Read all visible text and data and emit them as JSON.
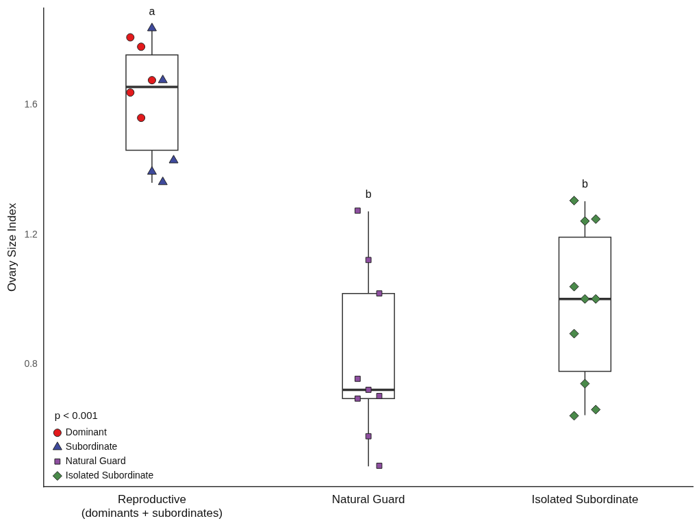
{
  "chart_data": {
    "type": "box",
    "ylabel": "Ovary Size Index",
    "categories": [
      "Reproductive\n(dominants + subordinates)",
      "Natural Guard",
      "Isolated Subordinate"
    ],
    "boxes": [
      {
        "low": 1.36,
        "q1": 1.46,
        "median": 1.655,
        "q3": 1.754,
        "high": 1.836
      },
      {
        "low": 0.486,
        "q1": 0.695,
        "median": 0.722,
        "q3": 1.019,
        "high": 1.272
      },
      {
        "low": 0.644,
        "q1": 0.779,
        "median": 1.002,
        "q3": 1.192,
        "high": 1.303
      }
    ],
    "color": "#ffffff",
    "series": [
      {
        "type": "scatter",
        "name": "Dominant",
        "color": "#e31a1c",
        "marker": "circle",
        "x": [
          "Reproductive\n(dominants + subordinates)",
          "Reproductive\n(dominants + subordinates)",
          "Reproductive\n(dominants + subordinates)",
          "Reproductive\n(dominants + subordinates)",
          "Reproductive\n(dominants + subordinates)"
        ],
        "values": [
          1.808,
          1.779,
          1.676,
          1.638,
          1.56
        ]
      },
      {
        "type": "scatter",
        "name": "Subordinate",
        "color": "#3f4a9c",
        "marker": "triangle",
        "x": [
          "Reproductive\n(dominants + subordinates)",
          "Reproductive\n(dominants + subordinates)",
          "Reproductive\n(dominants + subordinates)",
          "Reproductive\n(dominants + subordinates)",
          "Reproductive\n(dominants + subordinates)"
        ],
        "values": [
          1.836,
          1.676,
          1.429,
          1.394,
          1.362
        ]
      },
      {
        "type": "scatter",
        "name": "Natural Guard",
        "color": "#8e4fa0",
        "marker": "square",
        "x": [
          "Natural Guard",
          "Natural Guard",
          "Natural Guard",
          "Natural Guard",
          "Natural Guard",
          "Natural Guard",
          "Natural Guard",
          "Natural Guard",
          "Natural Guard"
        ],
        "values": [
          1.274,
          1.122,
          1.019,
          0.756,
          0.722,
          0.703,
          0.695,
          0.579,
          0.488
        ]
      },
      {
        "type": "scatter",
        "name": "Isolated Subordinate",
        "color": "#4a8a4a",
        "marker": "diamond",
        "x": [
          "Isolated Subordinate",
          "Isolated Subordinate",
          "Isolated Subordinate",
          "Isolated Subordinate",
          "Isolated Subordinate",
          "Isolated Subordinate",
          "Isolated Subordinate",
          "Isolated Subordinate",
          "Isolated Subordinate",
          "Isolated Subordinate"
        ],
        "values": [
          1.305,
          1.242,
          1.248,
          1.04,
          1.002,
          1.002,
          0.895,
          0.741,
          0.661,
          0.642
        ]
      }
    ],
    "ylim": [
      0.423,
      1.899
    ],
    "yticks": [
      0.8,
      1.2,
      1.6
    ],
    "grid": false,
    "legend": "bottom left",
    "legend_title": "p < 0.001",
    "annotations": [
      "a",
      "b",
      "b"
    ]
  }
}
